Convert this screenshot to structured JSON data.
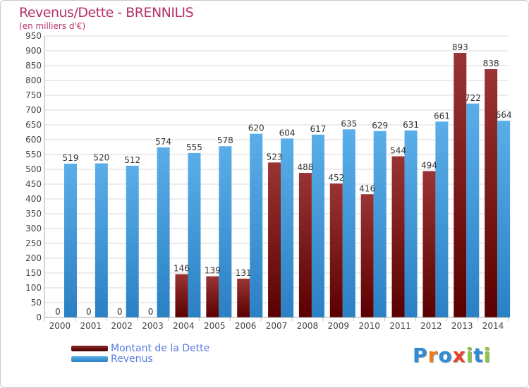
{
  "chart_data": {
    "type": "bar",
    "title": "Revenus/Dette - BRENNILIS",
    "subtitle": "(en milliers d'€)",
    "categories": [
      "2000",
      "2001",
      "2002",
      "2003",
      "2004",
      "2005",
      "2006",
      "2007",
      "2008",
      "2009",
      "2010",
      "2011",
      "2012",
      "2013",
      "2014"
    ],
    "series": [
      {
        "name": "Montant de la Dette",
        "color": "#7a1a1a",
        "values": [
          0,
          0,
          0,
          0,
          146,
          139,
          131,
          523,
          488,
          452,
          416,
          544,
          494,
          893,
          838
        ]
      },
      {
        "name": "Revenus",
        "color": "#3d97dd",
        "values": [
          519,
          520,
          512,
          574,
          555,
          578,
          620,
          604,
          617,
          635,
          629,
          631,
          661,
          722,
          664
        ]
      }
    ],
    "ylim": [
      0,
      950
    ],
    "yticks": [
      0,
      50,
      100,
      150,
      200,
      250,
      300,
      350,
      400,
      450,
      500,
      550,
      600,
      650,
      700,
      750,
      800,
      850,
      900,
      950
    ],
    "grid": true,
    "legend": "bottom-left"
  },
  "logo": {
    "letters": [
      "P",
      "r",
      "o",
      "x",
      "i",
      "t",
      "i"
    ],
    "colors": [
      "#2e8bd6",
      "#ef7d1a",
      "#2e8bd6",
      "#e8432a",
      "#8cc63f",
      "#2e8bd6",
      "#8cc63f"
    ]
  }
}
